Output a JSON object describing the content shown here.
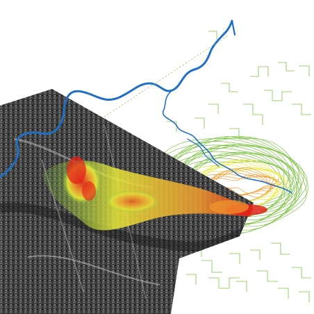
{
  "colors": {
    "background": "#ffffff",
    "river": "#1f6fc5",
    "contour_low": "#7dc242",
    "contour_mid": "#e9e93a",
    "contour_high": "#f29a2e",
    "contour_peak": "#e2231a",
    "satellite_dark": "#2a2a2a",
    "satellite_light": "#cfcfcf"
  },
  "layers": [
    {
      "name": "river",
      "icon": "river-icon"
    },
    {
      "name": "satellite-image",
      "icon": "aerial-photo-icon"
    },
    {
      "name": "contour-lines",
      "icon": "contour-icon"
    }
  ]
}
